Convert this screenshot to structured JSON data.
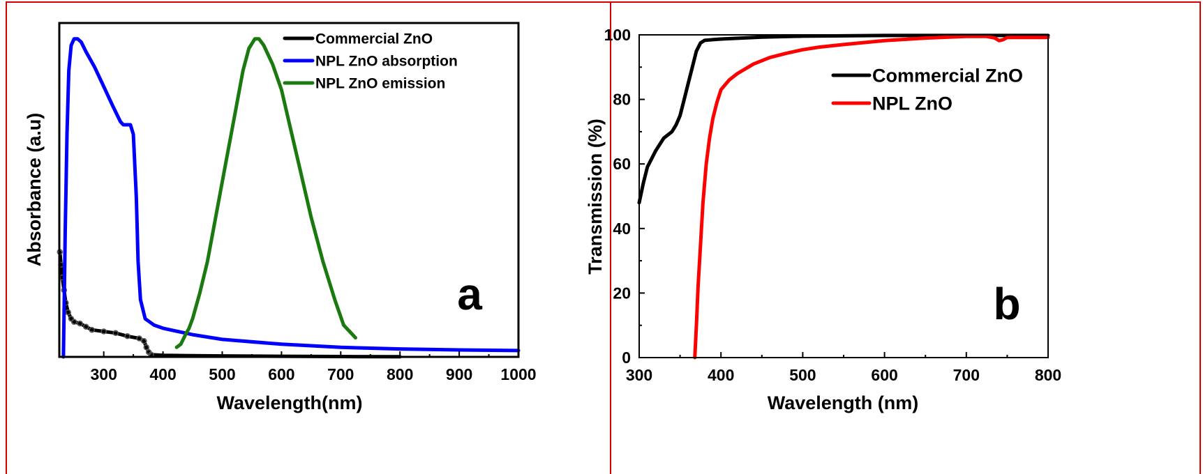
{
  "colors": {
    "border": "#d40000",
    "commercial": "#000000",
    "npl_absorption": "#0000ff",
    "npl_emission": "#1a7a0f",
    "npl_transmission": "#ff0000",
    "commercial_markers": "#555555"
  },
  "chart_data": [
    {
      "panel": "a",
      "type": "line",
      "title": "",
      "xlabel": "Wavelength(nm)",
      "ylabel": "Absorbance (a.u)",
      "xlim": [
        225,
        1000
      ],
      "ylim": [
        0,
        1.05
      ],
      "x_ticks": [
        300,
        400,
        500,
        600,
        700,
        800,
        900,
        1000
      ],
      "x_tick_labels": [
        "300",
        "400",
        "500",
        "600",
        "700",
        "800",
        "900",
        "1000"
      ],
      "y_ticks": [],
      "y_tick_labels": [],
      "grid": false,
      "legend_position": "top-right",
      "panel_label": "a",
      "series": [
        {
          "name": "Commercial ZnO",
          "color": "#000000",
          "markers": true,
          "points": [
            [
              226,
              0.33
            ],
            [
              228,
              0.29
            ],
            [
              230,
              0.25
            ],
            [
              233,
              0.21
            ],
            [
              236,
              0.17
            ],
            [
              240,
              0.14
            ],
            [
              245,
              0.12
            ],
            [
              250,
              0.11
            ],
            [
              260,
              0.105
            ],
            [
              270,
              0.095
            ],
            [
              280,
              0.085
            ],
            [
              300,
              0.08
            ],
            [
              320,
              0.075
            ],
            [
              340,
              0.065
            ],
            [
              360,
              0.058
            ],
            [
              368,
              0.05
            ],
            [
              372,
              0.03
            ],
            [
              376,
              0.015
            ],
            [
              380,
              0.007
            ],
            [
              400,
              0.005
            ],
            [
              450,
              0.004
            ],
            [
              500,
              0.003
            ],
            [
              600,
              0.002
            ],
            [
              700,
              0.001
            ],
            [
              800,
              0.0005
            ]
          ]
        },
        {
          "name": "NPL ZnO absorption",
          "color": "#0000ff",
          "markers": false,
          "points": [
            [
              232,
              0.0
            ],
            [
              235,
              0.4
            ],
            [
              238,
              0.7
            ],
            [
              241,
              0.9
            ],
            [
              245,
              0.98
            ],
            [
              250,
              1.0
            ],
            [
              256,
              1.0
            ],
            [
              262,
              0.99
            ],
            [
              270,
              0.96
            ],
            [
              285,
              0.91
            ],
            [
              300,
              0.85
            ],
            [
              315,
              0.79
            ],
            [
              328,
              0.74
            ],
            [
              333,
              0.73
            ],
            [
              345,
              0.73
            ],
            [
              350,
              0.7
            ],
            [
              355,
              0.5
            ],
            [
              358,
              0.3
            ],
            [
              362,
              0.18
            ],
            [
              370,
              0.12
            ],
            [
              385,
              0.1
            ],
            [
              400,
              0.09
            ],
            [
              450,
              0.07
            ],
            [
              500,
              0.055
            ],
            [
              600,
              0.04
            ],
            [
              700,
              0.03
            ],
            [
              800,
              0.025
            ],
            [
              900,
              0.022
            ],
            [
              1000,
              0.02
            ]
          ]
        },
        {
          "name": "NPL ZnO emission",
          "color": "#1a7a0f",
          "markers": false,
          "points": [
            [
              423,
              0.03
            ],
            [
              430,
              0.04
            ],
            [
              438,
              0.07
            ],
            [
              444,
              0.09
            ],
            [
              450,
              0.12
            ],
            [
              462,
              0.2
            ],
            [
              475,
              0.3
            ],
            [
              490,
              0.45
            ],
            [
              505,
              0.6
            ],
            [
              520,
              0.75
            ],
            [
              535,
              0.9
            ],
            [
              545,
              0.97
            ],
            [
              555,
              1.0
            ],
            [
              562,
              1.0
            ],
            [
              570,
              0.98
            ],
            [
              585,
              0.92
            ],
            [
              600,
              0.84
            ],
            [
              615,
              0.72
            ],
            [
              630,
              0.6
            ],
            [
              650,
              0.44
            ],
            [
              670,
              0.3
            ],
            [
              690,
              0.18
            ],
            [
              705,
              0.1
            ],
            [
              715,
              0.08
            ],
            [
              725,
              0.06
            ]
          ]
        }
      ]
    },
    {
      "panel": "b",
      "type": "line",
      "title": "",
      "xlabel": "Wavelength (nm)",
      "ylabel": "Transmission (%)",
      "xlim": [
        300,
        800
      ],
      "ylim": [
        0,
        100
      ],
      "x_ticks": [
        300,
        400,
        500,
        600,
        700,
        800
      ],
      "x_tick_labels": [
        "300",
        "400",
        "500",
        "600",
        "700",
        "800"
      ],
      "y_ticks": [
        0,
        20,
        40,
        60,
        80,
        100
      ],
      "y_tick_labels": [
        "0",
        "20",
        "40",
        "60",
        "80",
        "100"
      ],
      "grid": false,
      "legend_position": "top-right",
      "panel_label": "b",
      "series": [
        {
          "name": "Commercial ZnO",
          "color": "#000000",
          "points": [
            [
              300,
              48
            ],
            [
              305,
              54
            ],
            [
              310,
              59
            ],
            [
              320,
              64
            ],
            [
              330,
              68
            ],
            [
              340,
              70
            ],
            [
              345,
              72
            ],
            [
              350,
              75
            ],
            [
              355,
              80
            ],
            [
              360,
              85
            ],
            [
              365,
              90
            ],
            [
              370,
              95
            ],
            [
              375,
              97.5
            ],
            [
              380,
              98.3
            ],
            [
              390,
              98.5
            ],
            [
              400,
              98.7
            ],
            [
              450,
              99.3
            ],
            [
              500,
              99.6
            ],
            [
              600,
              99.8
            ],
            [
              700,
              99.8
            ],
            [
              800,
              99.8
            ]
          ]
        },
        {
          "name": "NPL ZnO",
          "color": "#ff0000",
          "points": [
            [
              368,
              0
            ],
            [
              370,
              10
            ],
            [
              372,
              22
            ],
            [
              375,
              35
            ],
            [
              378,
              48
            ],
            [
              382,
              60
            ],
            [
              386,
              68
            ],
            [
              390,
              74
            ],
            [
              395,
              79
            ],
            [
              400,
              83
            ],
            [
              410,
              86
            ],
            [
              420,
              88
            ],
            [
              440,
              91
            ],
            [
              460,
              93
            ],
            [
              480,
              94.3
            ],
            [
              500,
              95.4
            ],
            [
              520,
              96.2
            ],
            [
              550,
              97
            ],
            [
              600,
              98.2
            ],
            [
              650,
              99
            ],
            [
              700,
              99.5
            ],
            [
              725,
              99.5
            ],
            [
              735,
              99
            ],
            [
              740,
              98.2
            ],
            [
              745,
              98.5
            ],
            [
              750,
              99.2
            ],
            [
              800,
              99.2
            ]
          ]
        }
      ]
    }
  ]
}
